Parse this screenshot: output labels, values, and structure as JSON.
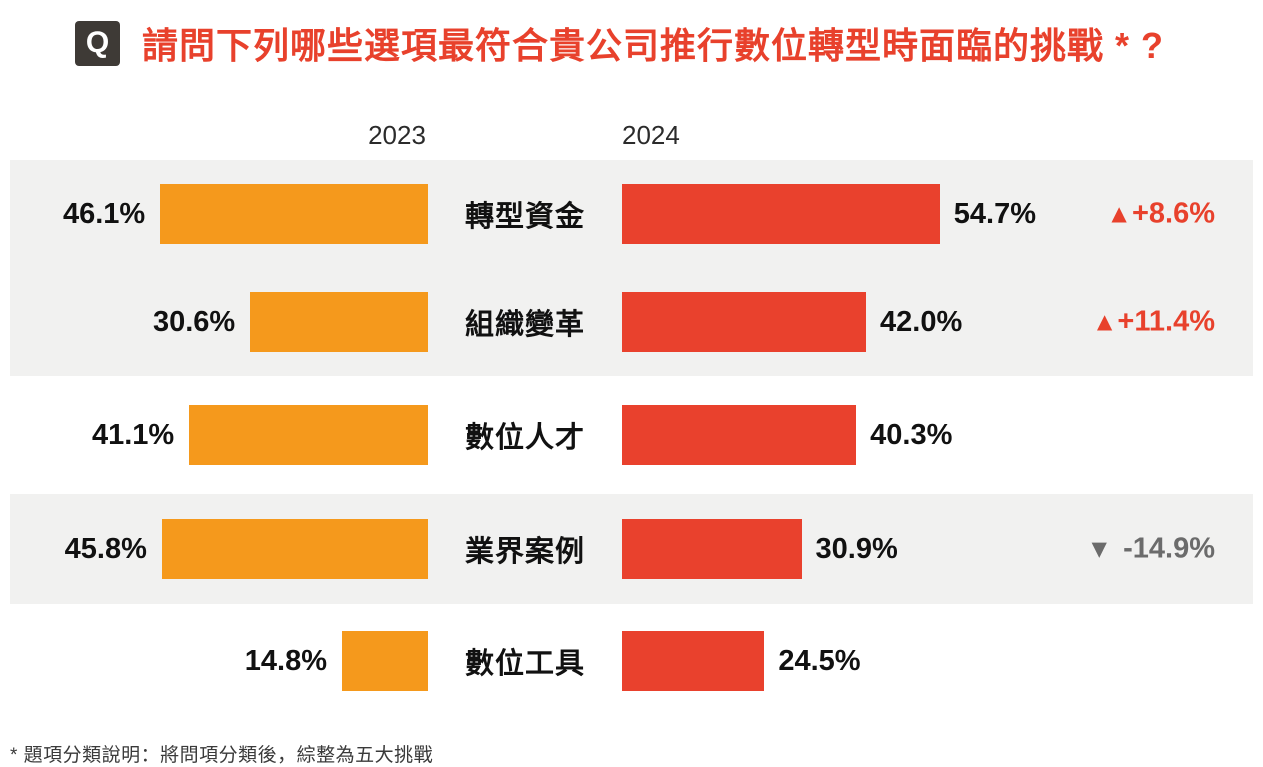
{
  "title": {
    "badge": "Q",
    "text": "請問下列哪些選項最符合貴公司推行數位轉型時面臨的挑戰 * ?"
  },
  "header": {
    "left_year": "2023",
    "right_year": "2024"
  },
  "footnote": "* 題項分類說明：將問項分類後，綜整為五大挑戰",
  "colors": {
    "bar_2023": "#f5991c",
    "bar_2024": "#e9412d",
    "accent_red": "#e8412c",
    "delta_up": "#e8412c",
    "delta_down": "#6b6b6b",
    "stripe_gray": "#f1f1f0",
    "badge_bg": "#3e3a36",
    "text_dark": "#111111"
  },
  "chart_data": {
    "type": "bar",
    "orientation": "horizontal-bilateral",
    "title": "請問下列哪些選項最符合貴公司推行數位轉型時面臨的挑戰 * ?",
    "categories": [
      "轉型資金",
      "組織變革",
      "數位人才",
      "業界案例",
      "數位工具"
    ],
    "series": [
      {
        "name": "2023",
        "values": [
          46.1,
          30.6,
          41.1,
          45.8,
          14.8
        ],
        "color": "#f5991c",
        "bars_aligned": "right"
      },
      {
        "name": "2024",
        "values": [
          54.7,
          42.0,
          40.3,
          30.9,
          24.5
        ],
        "color": "#e9412d",
        "bars_aligned": "left"
      }
    ],
    "deltas": [
      "+8.6%",
      "+11.4%",
      null,
      "-14.9%",
      null
    ],
    "xlim_percent": [
      0,
      72
    ],
    "grid": false,
    "legend_position": "column headers above bars",
    "rows": [
      {
        "category": "轉型資金",
        "value_2023": 46.1,
        "value_2024": 54.7,
        "label_2023": "46.1%",
        "label_2024": "54.7%",
        "delta_dir": "up",
        "delta_icon": "▲",
        "delta_text": "+8.6%"
      },
      {
        "category": "組織變革",
        "value_2023": 30.6,
        "value_2024": 42.0,
        "label_2023": "30.6%",
        "label_2024": "42.0%",
        "delta_dir": "up",
        "delta_icon": "▲",
        "delta_text": "+11.4%"
      },
      {
        "category": "數位人才",
        "value_2023": 41.1,
        "value_2024": 40.3,
        "label_2023": "41.1%",
        "label_2024": "40.3%",
        "delta_dir": "none",
        "delta_icon": "",
        "delta_text": ""
      },
      {
        "category": "業界案例",
        "value_2023": 45.8,
        "value_2024": 30.9,
        "label_2023": "45.8%",
        "label_2024": "30.9%",
        "delta_dir": "down",
        "delta_icon": "▼",
        "delta_text": "-14.9%"
      },
      {
        "category": "數位工具",
        "value_2023": 14.8,
        "value_2024": 24.5,
        "label_2023": "14.8%",
        "label_2024": "24.5%",
        "delta_dir": "none",
        "delta_icon": "",
        "delta_text": ""
      }
    ]
  }
}
